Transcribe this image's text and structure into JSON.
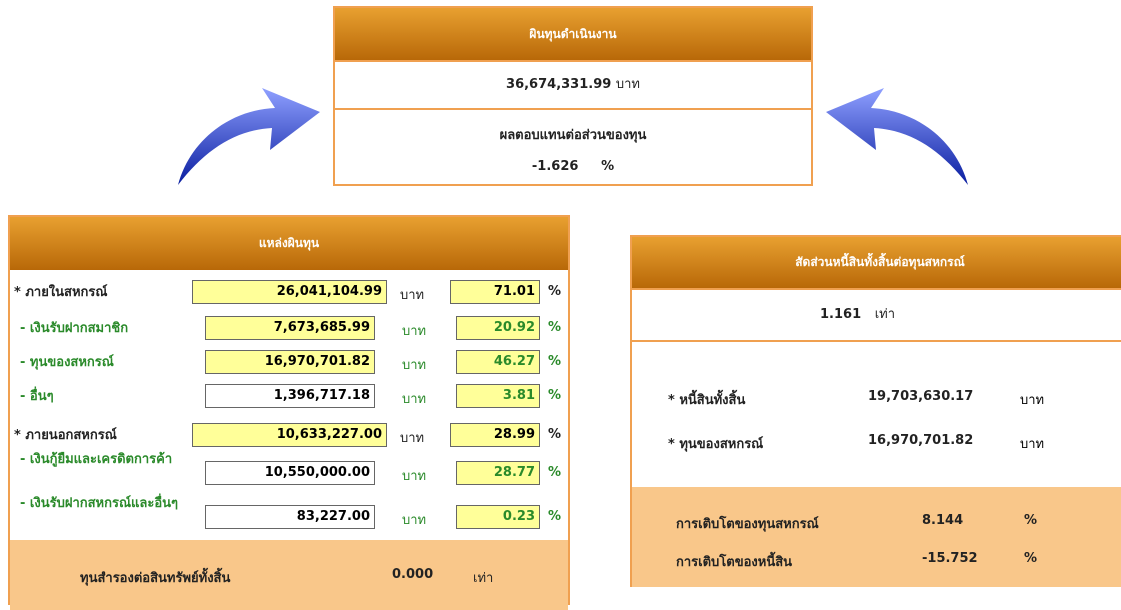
{
  "top": {
    "title": "ผินทุนดำเนินงาน",
    "amount": "36,674,331.99",
    "amount_unit": "บาท",
    "roe_label": "ผลตอบแทนต่อส่วนของทุน",
    "roe_value": "-1.626",
    "roe_unit": "%"
  },
  "sources": {
    "title": "แหล่งผินทุน",
    "rows": [
      [
        "* ภายในสหกรณ์",
        "26,041,104.99",
        "บาท",
        "71.01",
        "%"
      ],
      [
        "- เงินรับฝากสมาชิก",
        "7,673,685.99",
        "บาท",
        "20.92",
        "%"
      ],
      [
        "- ทุนของสหกรณ์",
        "16,970,701.82",
        "บาท",
        "46.27",
        "%"
      ],
      [
        "- อื่นๆ",
        "1,396,717.18",
        "บาท",
        "3.81",
        "%"
      ],
      [
        "* ภายนอกสหกรณ์",
        "10,633,227.00",
        "บาท",
        "28.99",
        "%"
      ],
      [
        "- เงินกู้ยืมและเครดิตการค้า",
        "10,550,000.00",
        "บาท",
        "28.77",
        "%"
      ],
      [
        "- เงินรับฝากสหกรณ์และอื่นๆ",
        "83,227.00",
        "บาท",
        "0.23",
        "%"
      ]
    ],
    "footer_label": "ทุนสำรองต่อสินทรัพย์ทั้งสิ้น",
    "footer_value": "0.000",
    "footer_unit": "เท่า"
  },
  "ratio": {
    "title": "สัดส่วนหนี้สินทั้งสิ้นต่อทุนสหกรณ์",
    "value": "1.161",
    "unit": "เท่า",
    "items": [
      [
        "* หนี้สินทั้งสิ้น",
        "19,703,630.17",
        "บาท"
      ],
      [
        "* ทุนของสหกรณ์",
        "16,970,701.82",
        "บาท"
      ]
    ],
    "growth": [
      [
        "การเติบโตของทุนสหกรณ์",
        "8.144",
        "%"
      ],
      [
        "การเติบโตของหนี้สิน",
        "-15.752",
        "%"
      ]
    ]
  }
}
